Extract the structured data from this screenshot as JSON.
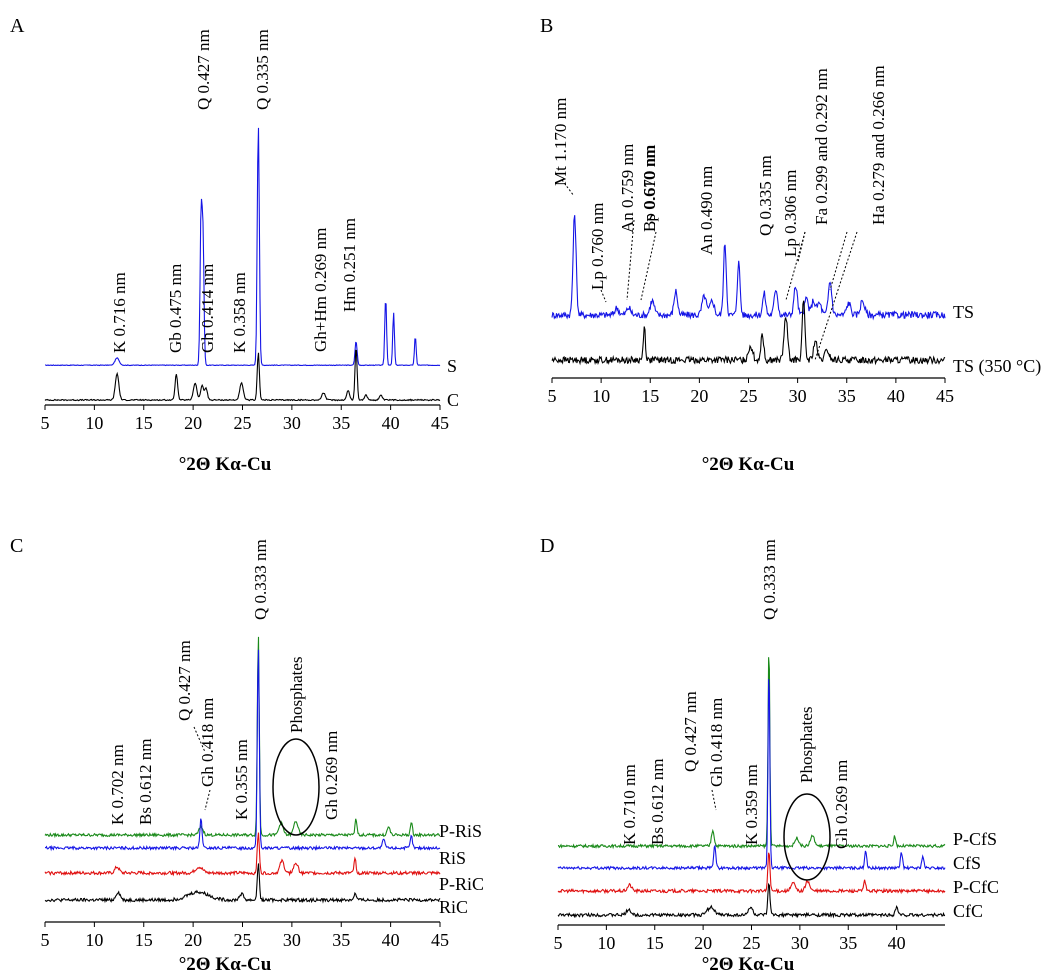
{
  "chart_data": [
    {
      "type": "line",
      "panel_label": "A",
      "xlabel": "°2Θ Kα-Cu",
      "xlim": [
        5,
        45
      ],
      "x_ticks": [
        "5",
        "10",
        "15",
        "20",
        "25",
        "30",
        "35",
        "40",
        "45"
      ],
      "series": [
        {
          "name": "S",
          "color": "#1515e6",
          "base": 2,
          "noise": 0.12,
          "peaks": [
            [
              12.3,
              3,
              0.3
            ],
            [
              20.8,
              60,
              0.14
            ],
            [
              21.0,
              52,
              0.14
            ],
            [
              26.6,
              100,
              0.15
            ],
            [
              36.5,
              10,
              0.15
            ],
            [
              39.5,
              28,
              0.13
            ],
            [
              40.3,
              22,
              0.12
            ],
            [
              42.5,
              12,
              0.12
            ]
          ]
        },
        {
          "name": "C",
          "color": "#000000",
          "base": 0,
          "noise": 0.25,
          "peaks": [
            [
              12.3,
              11,
              0.25
            ],
            [
              18.3,
              11,
              0.18
            ],
            [
              20.2,
              7,
              0.25
            ],
            [
              20.9,
              6,
              0.2
            ],
            [
              21.3,
              5,
              0.2
            ],
            [
              24.9,
              7,
              0.25
            ],
            [
              26.6,
              20,
              0.15
            ],
            [
              33.2,
              3,
              0.25
            ],
            [
              35.7,
              4,
              0.2
            ],
            [
              36.5,
              22,
              0.15
            ],
            [
              37.5,
              2,
              0.2
            ],
            [
              39.0,
              2,
              0.2
            ]
          ]
        }
      ],
      "annotations": [
        "K 0.716 nm",
        "Gb 0.475 nm",
        "Q 0.427 nm",
        "Gh 0.414 nm",
        "K 0.358 nm",
        "Q 0.335 nm",
        "Gh+Hm 0.269 nm",
        "Hm 0.251 nm"
      ]
    },
    {
      "type": "line",
      "panel_label": "B",
      "xlabel": "°2Θ Kα-Cu",
      "xlim": [
        5,
        45
      ],
      "x_ticks": [
        "5",
        "10",
        "15",
        "20",
        "25",
        "30",
        "35",
        "40",
        "45"
      ],
      "series": [
        {
          "name": "TS",
          "color": "#1515e6",
          "base": 0,
          "noise": 1.4,
          "peaks": [
            [
              7.3,
              42,
              0.22
            ],
            [
              11.6,
              3,
              0.3
            ],
            [
              12.8,
              3,
              0.3
            ],
            [
              15.2,
              6,
              0.3
            ],
            [
              17.6,
              10,
              0.25
            ],
            [
              20.5,
              8,
              0.3
            ],
            [
              21.3,
              6,
              0.3
            ],
            [
              22.6,
              30,
              0.2
            ],
            [
              24.0,
              22,
              0.2
            ],
            [
              26.6,
              9,
              0.22
            ],
            [
              27.8,
              11,
              0.25
            ],
            [
              29.8,
              12,
              0.25
            ],
            [
              30.9,
              7,
              0.25
            ],
            [
              31.6,
              6,
              0.25
            ],
            [
              32.2,
              5,
              0.3
            ],
            [
              33.3,
              14,
              0.25
            ],
            [
              35.2,
              5,
              0.3
            ],
            [
              36.6,
              6,
              0.3
            ]
          ]
        },
        {
          "name": "TS (350 °C)",
          "color": "#000000",
          "base": 0,
          "noise": 1.4,
          "peaks": [
            [
              14.4,
              14,
              0.15
            ],
            [
              25.2,
              6,
              0.3
            ],
            [
              26.4,
              11,
              0.2
            ],
            [
              28.8,
              18,
              0.25
            ],
            [
              30.6,
              24,
              0.2
            ],
            [
              31.8,
              8,
              0.25
            ],
            [
              33.0,
              4,
              0.3
            ]
          ]
        }
      ],
      "annotations": [
        "Mt 1.170 nm",
        "Lp 0.760 nm",
        "An 0.759 nm",
        "Lp 0.670 nm",
        "Bs 0.610 nm",
        "An 0.490 nm",
        "Q 0.335 nm",
        "Lp 0.306 nm",
        "Fa 0.299 and 0.292 nm",
        "Ha 0.279 and 0.266 nm"
      ]
    },
    {
      "type": "line",
      "panel_label": "C",
      "xlabel": "°2Θ Kα-Cu",
      "xlim": [
        5,
        45
      ],
      "x_ticks": [
        "5",
        "10",
        "15",
        "20",
        "25",
        "30",
        "35",
        "40",
        "45"
      ],
      "series": [
        {
          "name": "P-RiS",
          "color": "#1a8a1a",
          "base": 0,
          "noise": 0.7,
          "peaks": [
            [
              20.8,
              4,
              0.3
            ],
            [
              26.6,
              100,
              0.14
            ],
            [
              28.9,
              6,
              0.3
            ],
            [
              30.4,
              7,
              0.3
            ],
            [
              36.5,
              8,
              0.15
            ],
            [
              39.8,
              4,
              0.2
            ],
            [
              42.1,
              6,
              0.15
            ]
          ]
        },
        {
          "name": "RiS",
          "color": "#1515e6",
          "base": 0,
          "noise": 0.7,
          "peaks": [
            [
              20.8,
              15,
              0.15
            ],
            [
              26.6,
              100,
              0.14
            ],
            [
              39.3,
              4,
              0.2
            ],
            [
              42.1,
              6,
              0.15
            ]
          ]
        },
        {
          "name": "P-RiC",
          "color": "#e01010",
          "base": 0,
          "noise": 0.8,
          "peaks": [
            [
              12.3,
              3,
              0.3
            ],
            [
              20.6,
              3,
              0.5
            ],
            [
              26.6,
              20,
              0.15
            ],
            [
              29.0,
              6,
              0.3
            ],
            [
              30.4,
              5,
              0.3
            ],
            [
              36.4,
              7,
              0.15
            ]
          ]
        },
        {
          "name": "RiC",
          "color": "#000000",
          "base": 0,
          "noise": 0.8,
          "peaks": [
            [
              12.4,
              4,
              0.3
            ],
            [
              20.5,
              4,
              1.5
            ],
            [
              24.9,
              3,
              0.3
            ],
            [
              26.6,
              18,
              0.15
            ],
            [
              36.4,
              3,
              0.2
            ]
          ]
        }
      ],
      "annotations": [
        "K 0.702 nm",
        "Bs 0.612 nm",
        "Q 0.427 nm",
        "Gh 0.418 nm",
        "K 0.355 nm",
        "Q 0.333 nm",
        "Phosphates",
        "Gh 0.269 nm"
      ]
    },
    {
      "type": "line",
      "panel_label": "D",
      "xlabel": "°2Θ Kα-Cu",
      "xlim": [
        5,
        45
      ],
      "x_ticks": [
        "5",
        "10",
        "15",
        "20",
        "25",
        "30",
        "35",
        "40"
      ],
      "series": [
        {
          "name": "P-CfS",
          "color": "#1a8a1a",
          "base": 0,
          "noise": 0.7,
          "peaks": [
            [
              21.0,
              8,
              0.2
            ],
            [
              26.8,
              100,
              0.13
            ],
            [
              29.7,
              4,
              0.3
            ],
            [
              31.3,
              5,
              0.3
            ],
            [
              39.8,
              5,
              0.15
            ]
          ]
        },
        {
          "name": "CfS",
          "color": "#1515e6",
          "base": 0,
          "noise": 0.7,
          "peaks": [
            [
              21.2,
              12,
              0.15
            ],
            [
              26.8,
              100,
              0.13
            ],
            [
              36.8,
              9,
              0.15
            ],
            [
              40.5,
              8,
              0.15
            ],
            [
              42.7,
              6,
              0.15
            ]
          ]
        },
        {
          "name": "P-CfC",
          "color": "#e01010",
          "base": 0,
          "noise": 0.8,
          "peaks": [
            [
              12.4,
              3,
              0.3
            ],
            [
              26.8,
              20,
              0.15
            ],
            [
              29.3,
              4,
              0.3
            ],
            [
              30.8,
              5,
              0.3
            ],
            [
              36.7,
              5,
              0.15
            ]
          ]
        },
        {
          "name": "CfC",
          "color": "#000000",
          "base": 0,
          "noise": 0.8,
          "peaks": [
            [
              12.3,
              3,
              0.3
            ],
            [
              20.8,
              4,
              0.5
            ],
            [
              24.9,
              4,
              0.3
            ],
            [
              26.8,
              16,
              0.15
            ],
            [
              40.0,
              4,
              0.2
            ]
          ]
        }
      ],
      "annotations": [
        "K 0.710 nm",
        "Bs 0.612 nm",
        "Q 0.427 nm",
        "Gh 0.418 nm",
        "K 0.359 nm",
        "Q 0.333 nm",
        "Phosphates",
        "Gh 0.269 nm"
      ]
    }
  ]
}
